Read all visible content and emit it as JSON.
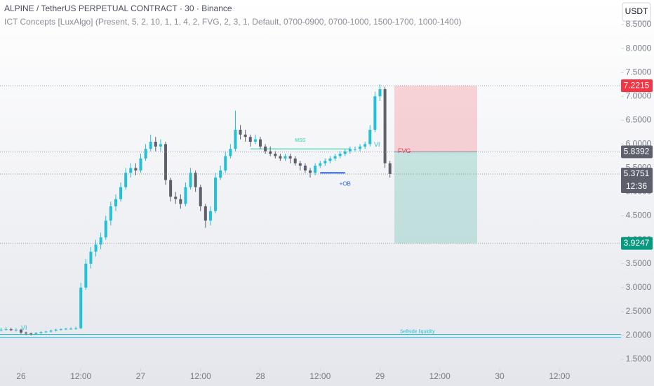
{
  "chart_data": {
    "type": "candlestick",
    "title": "ALPINE / TetherUS PERPETUAL CONTRACT · 30 · Binance",
    "subtitle": "ICT Concepts [LuxAlgo] (Present, 5, 2, 10, 1, 1, 4, 2, FVG, 2, 3, 1, Default, 0700-0900, 0700-1000, 1500-1700, 1000-1400)",
    "currency": "USDT",
    "up_color": "#22c1d6",
    "down_color": "#5d606b",
    "xlim": [
      -4.22,
      120.35
    ],
    "ylim": [
      1.309,
      9.014
    ],
    "xticks": [
      {
        "value": 0,
        "label": "26"
      },
      {
        "value": 12,
        "label": "12:00"
      },
      {
        "value": 24,
        "label": "27"
      },
      {
        "value": 36,
        "label": "12:00"
      },
      {
        "value": 48,
        "label": "28"
      },
      {
        "value": 60,
        "label": "12:00"
      },
      {
        "value": 72,
        "label": "29"
      },
      {
        "value": 84,
        "label": "12:00"
      },
      {
        "value": 96,
        "label": "30"
      },
      {
        "value": 108,
        "label": "12:00"
      }
    ],
    "yticks": [
      {
        "value": 1.5,
        "label": "1.5000"
      },
      {
        "value": 2,
        "label": "2.0000"
      },
      {
        "value": 2.5,
        "label": "2.5000"
      },
      {
        "value": 3,
        "label": "3.0000"
      },
      {
        "value": 3.5,
        "label": "3.5000"
      },
      {
        "value": 4,
        "label": "4.0000"
      },
      {
        "value": 4.5,
        "label": "4.5000"
      },
      {
        "value": 5,
        "label": "5.0000"
      },
      {
        "value": 5.5,
        "label": "5.5000"
      },
      {
        "value": 6,
        "label": "6.0000"
      },
      {
        "value": 6.5,
        "label": "6.5000"
      },
      {
        "value": 7,
        "label": "7.0000"
      },
      {
        "value": 7.5,
        "label": "7.5000"
      },
      {
        "value": 8,
        "label": "8.0000"
      },
      {
        "value": 8.5,
        "label": "8.5000"
      }
    ],
    "candles": [
      [
        -4,
        2.11,
        2.16,
        2.08,
        2.12
      ],
      [
        -3,
        2.12,
        2.17,
        2.1,
        2.13
      ],
      [
        -2,
        2.13,
        2.16,
        2.09,
        2.11
      ],
      [
        -1,
        2.11,
        2.15,
        2.08,
        2.12
      ],
      [
        0,
        2.12,
        2.14,
        2.03,
        2.06
      ],
      [
        1,
        2.06,
        2.08,
        2.01,
        2.04
      ],
      [
        2,
        2.04,
        2.06,
        2.0,
        2.03
      ],
      [
        3,
        2.03,
        2.07,
        2.01,
        2.05
      ],
      [
        4,
        2.05,
        2.09,
        2.03,
        2.07
      ],
      [
        5,
        2.07,
        2.1,
        2.05,
        2.08
      ],
      [
        6,
        2.08,
        2.12,
        2.06,
        2.1
      ],
      [
        7,
        2.1,
        2.14,
        2.08,
        2.12
      ],
      [
        8,
        2.12,
        2.15,
        2.1,
        2.13
      ],
      [
        9,
        2.13,
        2.16,
        2.11,
        2.14
      ],
      [
        10,
        2.14,
        2.17,
        2.12,
        2.14
      ],
      [
        11,
        2.14,
        2.18,
        2.12,
        2.15
      ],
      [
        12,
        2.15,
        3.1,
        2.13,
        3.0
      ],
      [
        13,
        3.0,
        3.6,
        2.95,
        3.5
      ],
      [
        14,
        3.5,
        3.85,
        3.4,
        3.75
      ],
      [
        15,
        3.75,
        4.0,
        3.65,
        3.9
      ],
      [
        16,
        3.9,
        4.15,
        3.8,
        4.05
      ],
      [
        17,
        4.05,
        4.5,
        4.0,
        4.4
      ],
      [
        18,
        4.4,
        4.8,
        4.3,
        4.7
      ],
      [
        19,
        4.7,
        4.95,
        4.6,
        4.85
      ],
      [
        20,
        4.85,
        5.2,
        4.8,
        5.1
      ],
      [
        21,
        5.1,
        5.5,
        5.05,
        5.4
      ],
      [
        22,
        5.4,
        5.6,
        5.3,
        5.5
      ],
      [
        23,
        5.5,
        5.6,
        5.35,
        5.45
      ],
      [
        24,
        5.45,
        5.8,
        5.4,
        5.7
      ],
      [
        25,
        5.7,
        6.0,
        5.65,
        5.9
      ],
      [
        26,
        5.9,
        6.2,
        5.85,
        6.05
      ],
      [
        27,
        6.05,
        6.15,
        5.85,
        5.95
      ],
      [
        28,
        5.95,
        6.1,
        5.85,
        6.0
      ],
      [
        29,
        6.0,
        6.05,
        5.15,
        5.25
      ],
      [
        30,
        5.25,
        5.3,
        4.8,
        4.9
      ],
      [
        31,
        4.9,
        5.0,
        4.75,
        4.85
      ],
      [
        32,
        4.85,
        4.95,
        4.65,
        4.75
      ],
      [
        33,
        4.75,
        5.2,
        4.7,
        5.1
      ],
      [
        34,
        5.1,
        5.5,
        5.05,
        5.4
      ],
      [
        35,
        5.4,
        5.45,
        5.0,
        5.1
      ],
      [
        36,
        5.1,
        5.15,
        4.6,
        4.7
      ],
      [
        37,
        4.7,
        4.75,
        4.25,
        4.4
      ],
      [
        38,
        4.4,
        4.7,
        4.3,
        4.6
      ],
      [
        39,
        4.6,
        5.4,
        4.55,
        5.3
      ],
      [
        40,
        5.3,
        5.55,
        5.25,
        5.45
      ],
      [
        41,
        5.45,
        5.85,
        5.4,
        5.75
      ],
      [
        42,
        5.75,
        6.0,
        5.7,
        5.9
      ],
      [
        43,
        5.9,
        6.7,
        5.85,
        6.3
      ],
      [
        44,
        6.3,
        6.4,
        6.1,
        6.2
      ],
      [
        45,
        6.2,
        6.3,
        6.05,
        6.15
      ],
      [
        46,
        6.15,
        6.2,
        5.95,
        6.05
      ],
      [
        47,
        6.05,
        6.2,
        6.0,
        6.1
      ],
      [
        48,
        6.1,
        6.15,
        5.9,
        5.95
      ],
      [
        49,
        5.95,
        6.0,
        5.8,
        5.85
      ],
      [
        50,
        5.85,
        5.95,
        5.75,
        5.8
      ],
      [
        51,
        5.8,
        5.85,
        5.7,
        5.75
      ],
      [
        52,
        5.75,
        5.8,
        5.65,
        5.7
      ],
      [
        53,
        5.7,
        5.8,
        5.65,
        5.75
      ],
      [
        54,
        5.75,
        5.8,
        5.6,
        5.7
      ],
      [
        55,
        5.7,
        5.75,
        5.55,
        5.6
      ],
      [
        56,
        5.6,
        5.65,
        5.45,
        5.55
      ],
      [
        57,
        5.55,
        5.6,
        5.4,
        5.45
      ],
      [
        58,
        5.45,
        5.5,
        5.3,
        5.4
      ],
      [
        59,
        5.4,
        5.6,
        5.35,
        5.55
      ],
      [
        60,
        5.55,
        5.65,
        5.5,
        5.6
      ],
      [
        61,
        5.6,
        5.7,
        5.55,
        5.65
      ],
      [
        62,
        5.65,
        5.75,
        5.6,
        5.7
      ],
      [
        63,
        5.7,
        5.8,
        5.65,
        5.75
      ],
      [
        64,
        5.75,
        5.85,
        5.7,
        5.8
      ],
      [
        65,
        5.8,
        5.9,
        5.75,
        5.85
      ],
      [
        66,
        5.85,
        5.95,
        5.8,
        5.9
      ],
      [
        67,
        5.9,
        5.95,
        5.85,
        5.9
      ],
      [
        68,
        5.9,
        6.0,
        5.85,
        5.95
      ],
      [
        69,
        5.95,
        6.05,
        5.9,
        6.0
      ],
      [
        70,
        6.0,
        6.4,
        5.95,
        6.3
      ],
      [
        71,
        6.3,
        7.1,
        6.25,
        7.0
      ],
      [
        72,
        7.0,
        7.25,
        6.9,
        7.15
      ],
      [
        73,
        7.15,
        7.2,
        5.5,
        5.6
      ],
      [
        74,
        5.6,
        5.65,
        5.3,
        5.3751
      ]
    ],
    "position": {
      "x": [
        74.9,
        91.5
      ],
      "stop": 7.2215,
      "entry": 5.8392,
      "target": 3.9247
    },
    "price_labels": [
      {
        "value": 7.2215,
        "color": "#f23645"
      },
      {
        "value": 5.8392,
        "color": "#5d606b"
      },
      {
        "value": 5.3751,
        "color": "#5d606b"
      },
      {
        "value": 3.9247,
        "color": "#089981"
      }
    ],
    "countdown": "12:36",
    "mss": {
      "text": "MSS",
      "x": [
        46,
        66
      ],
      "y": 5.9
    },
    "order_block": {
      "text": "+OB",
      "x": [
        60,
        65
      ],
      "y": 5.4
    },
    "liquidity": {
      "text": "Sellside liquidity",
      "levels": [
        2.02,
        1.96
      ]
    },
    "annotations": [
      "VI",
      "VI",
      "FVG"
    ]
  }
}
